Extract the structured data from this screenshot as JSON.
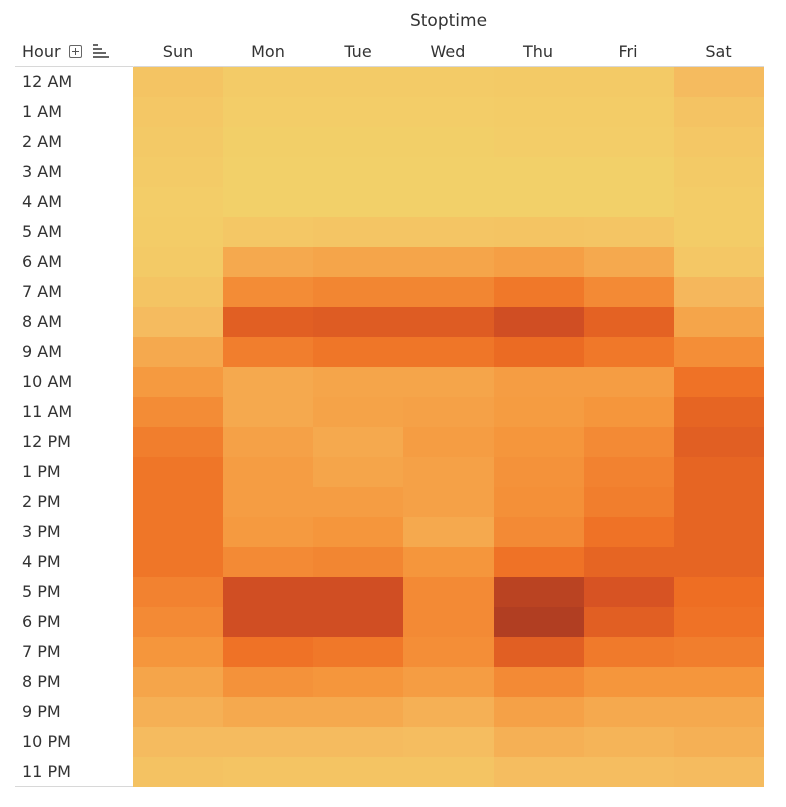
{
  "header": {
    "column_title": "Stoptime",
    "row_title": "Hour",
    "expand_icon": "plus-box-icon",
    "sort_icon": "sort-bars-icon"
  },
  "chart_data": {
    "type": "heatmap",
    "title": "",
    "x_title": "Stoptime",
    "y_title": "Hour",
    "x": [
      "Sun",
      "Mon",
      "Tue",
      "Wed",
      "Thu",
      "Fri",
      "Sat"
    ],
    "y": [
      "12 AM",
      "1 AM",
      "2 AM",
      "3 AM",
      "4 AM",
      "5 AM",
      "6 AM",
      "7 AM",
      "8 AM",
      "9 AM",
      "10 AM",
      "11 AM",
      "12 PM",
      "1 PM",
      "2 PM",
      "3 PM",
      "4 PM",
      "5 PM",
      "6 PM",
      "7 PM",
      "8 PM",
      "9 PM",
      "10 PM",
      "11 PM"
    ],
    "value_scale": [
      0,
      1
    ],
    "color_low": "#f2d26a",
    "color_high": "#a83c22",
    "values": [
      [
        0.12,
        0.06,
        0.06,
        0.06,
        0.07,
        0.07,
        0.2
      ],
      [
        0.1,
        0.04,
        0.04,
        0.04,
        0.05,
        0.05,
        0.13
      ],
      [
        0.08,
        0.03,
        0.03,
        0.03,
        0.04,
        0.04,
        0.1
      ],
      [
        0.06,
        0.02,
        0.02,
        0.02,
        0.02,
        0.02,
        0.07
      ],
      [
        0.04,
        0.02,
        0.02,
        0.02,
        0.02,
        0.02,
        0.05
      ],
      [
        0.05,
        0.1,
        0.11,
        0.11,
        0.12,
        0.11,
        0.05
      ],
      [
        0.07,
        0.3,
        0.32,
        0.32,
        0.35,
        0.3,
        0.1
      ],
      [
        0.12,
        0.45,
        0.48,
        0.48,
        0.55,
        0.46,
        0.22
      ],
      [
        0.2,
        0.7,
        0.72,
        0.72,
        0.82,
        0.68,
        0.32
      ],
      [
        0.3,
        0.52,
        0.56,
        0.56,
        0.62,
        0.55,
        0.44
      ],
      [
        0.38,
        0.3,
        0.32,
        0.32,
        0.36,
        0.36,
        0.58
      ],
      [
        0.45,
        0.3,
        0.33,
        0.34,
        0.37,
        0.4,
        0.66
      ],
      [
        0.52,
        0.34,
        0.3,
        0.36,
        0.4,
        0.46,
        0.7
      ],
      [
        0.56,
        0.36,
        0.32,
        0.34,
        0.42,
        0.5,
        0.66
      ],
      [
        0.56,
        0.36,
        0.36,
        0.34,
        0.43,
        0.52,
        0.66
      ],
      [
        0.56,
        0.38,
        0.4,
        0.3,
        0.46,
        0.58,
        0.66
      ],
      [
        0.56,
        0.46,
        0.48,
        0.4,
        0.58,
        0.66,
        0.66
      ],
      [
        0.5,
        0.82,
        0.82,
        0.46,
        0.92,
        0.78,
        0.6
      ],
      [
        0.46,
        0.82,
        0.82,
        0.46,
        0.96,
        0.7,
        0.58
      ],
      [
        0.4,
        0.58,
        0.55,
        0.44,
        0.7,
        0.54,
        0.52
      ],
      [
        0.32,
        0.42,
        0.4,
        0.36,
        0.46,
        0.4,
        0.4
      ],
      [
        0.26,
        0.3,
        0.3,
        0.26,
        0.34,
        0.3,
        0.3
      ],
      [
        0.2,
        0.2,
        0.2,
        0.18,
        0.26,
        0.24,
        0.26
      ],
      [
        0.14,
        0.12,
        0.12,
        0.12,
        0.18,
        0.18,
        0.2
      ]
    ]
  }
}
